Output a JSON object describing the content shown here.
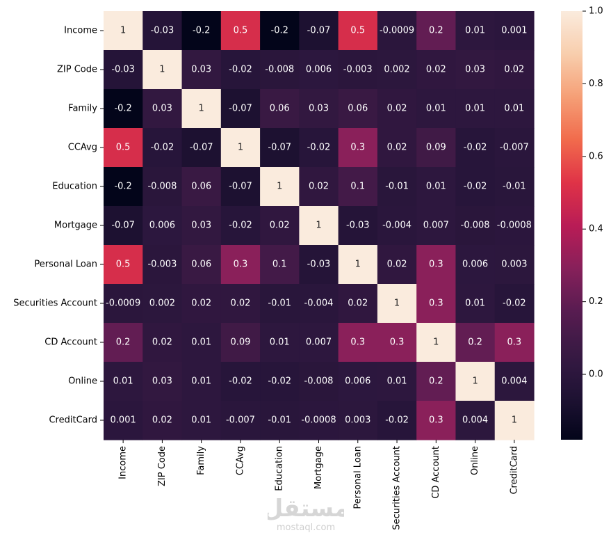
{
  "chart_data": {
    "type": "heatmap",
    "title": "",
    "xlabel": "",
    "ylabel": "",
    "labels": [
      "Income",
      "ZIP Code",
      "Family",
      "CCAvg",
      "Education",
      "Mortgage",
      "Personal Loan",
      "Securities Account",
      "CD Account",
      "Online",
      "CreditCard"
    ],
    "values": [
      [
        1,
        -0.03,
        -0.2,
        0.5,
        -0.2,
        -0.07,
        0.5,
        -0.0009,
        0.2,
        0.01,
        0.001
      ],
      [
        -0.03,
        1,
        0.03,
        -0.02,
        -0.008,
        0.006,
        -0.003,
        0.002,
        0.02,
        0.03,
        0.02
      ],
      [
        -0.2,
        0.03,
        1,
        -0.07,
        0.06,
        0.03,
        0.06,
        0.02,
        0.01,
        0.01,
        0.01
      ],
      [
        0.5,
        -0.02,
        -0.07,
        1,
        -0.07,
        -0.02,
        0.3,
        0.02,
        0.09,
        -0.02,
        -0.007
      ],
      [
        -0.2,
        -0.008,
        0.06,
        -0.07,
        1,
        0.02,
        0.1,
        -0.01,
        0.01,
        -0.02,
        -0.01
      ],
      [
        -0.07,
        0.006,
        0.03,
        -0.02,
        0.02,
        1,
        -0.03,
        -0.004,
        0.007,
        -0.008,
        -0.0008
      ],
      [
        0.5,
        -0.003,
        0.06,
        0.3,
        0.1,
        -0.03,
        1,
        0.02,
        0.3,
        0.006,
        0.003
      ],
      [
        -0.0009,
        0.002,
        0.02,
        0.02,
        -0.01,
        -0.004,
        0.02,
        1,
        0.3,
        0.01,
        -0.02
      ],
      [
        0.2,
        0.02,
        0.01,
        0.09,
        0.01,
        0.007,
        0.3,
        0.3,
        1,
        0.2,
        0.3
      ],
      [
        0.01,
        0.03,
        0.01,
        -0.02,
        -0.02,
        -0.008,
        0.006,
        0.01,
        0.2,
        1,
        0.004
      ],
      [
        0.001,
        0.02,
        0.01,
        -0.007,
        -0.01,
        -0.0008,
        0.003,
        -0.02,
        0.3,
        0.004,
        1
      ]
    ],
    "colorbar": {
      "range": [
        -0.18,
        1.0
      ],
      "ticks": [
        0.0,
        0.2,
        0.4,
        0.6,
        0.8,
        1.0
      ],
      "tick_labels": [
        "0.0",
        "0.2",
        "0.4",
        "0.6",
        "0.8",
        "1.0"
      ],
      "colormap": "rocket"
    },
    "annotations": true
  },
  "watermark": {
    "logo": "مستقل",
    "url": "mostaql.com"
  }
}
